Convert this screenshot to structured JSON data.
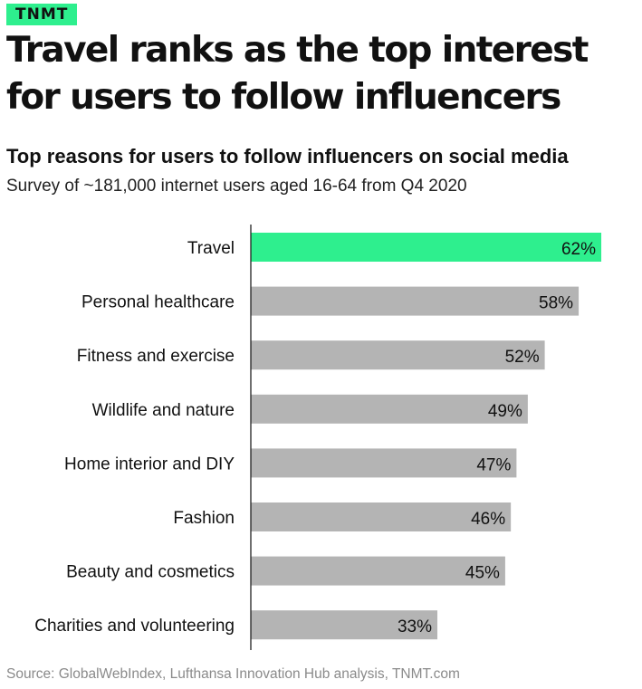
{
  "brand": {
    "name": "TNMT"
  },
  "headline": "Travel ranks as the top interest for users to follow influencers",
  "subtitle": "Top reasons for users to follow influencers on social media",
  "description": "Survey of ~181,000 internet users aged 16-64 from Q4 2020",
  "source": "Source: GlobalWebIndex, Lufthansa Innovation Hub analysis, TNMT.com",
  "colors": {
    "highlight": "#2eef8e",
    "bar": "#b4b4b4",
    "axis": "#222222",
    "text": "#111111"
  },
  "chart_data": {
    "type": "bar",
    "orientation": "horizontal",
    "categories": [
      "Travel",
      "Personal healthcare",
      "Fitness and exercise",
      "Wildlife and nature",
      "Home interior and DIY",
      "Fashion",
      "Beauty and cosmetics",
      "Charities and volunteering"
    ],
    "values": [
      62,
      58,
      52,
      49,
      47,
      46,
      45,
      33
    ],
    "data_labels": [
      "62%",
      "58%",
      "52%",
      "49%",
      "47%",
      "46%",
      "45%",
      "33%"
    ],
    "highlight_index": 0,
    "xlim": [
      0,
      66
    ],
    "unit": "%",
    "grid": false,
    "legend": "none"
  }
}
